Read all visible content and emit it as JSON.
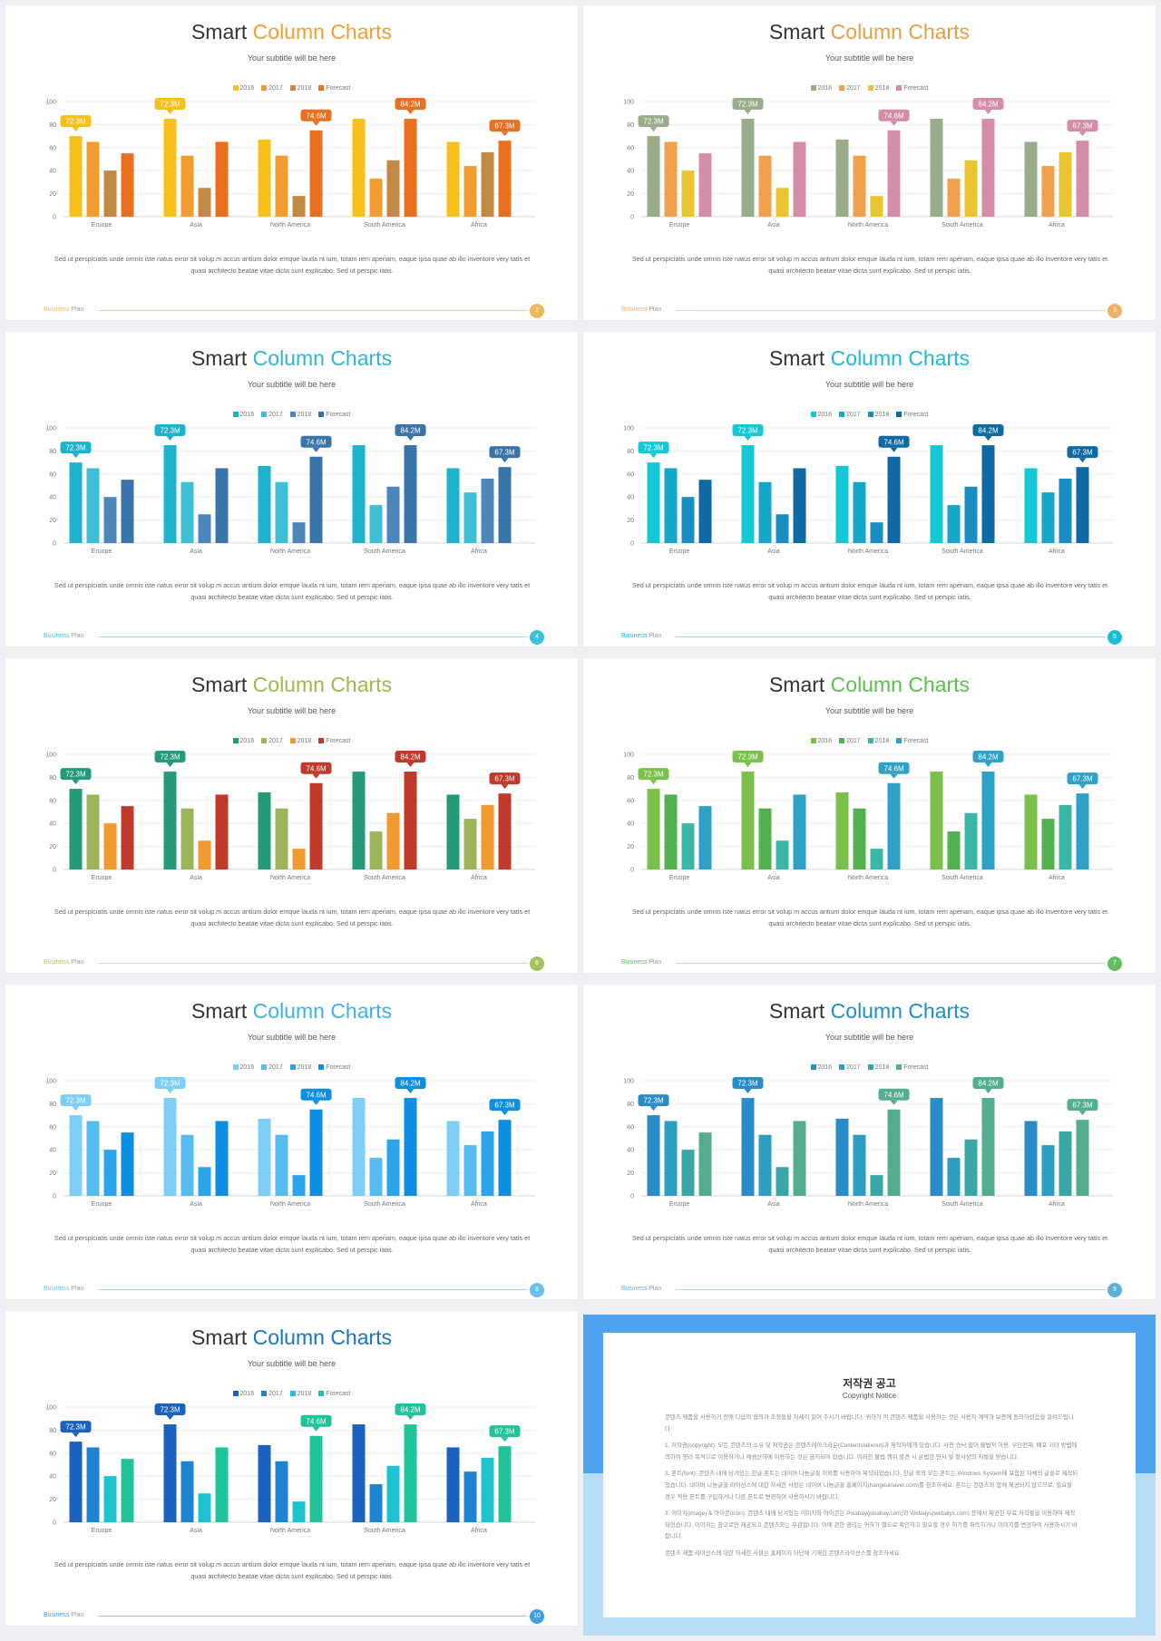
{
  "chart_data": {
    "type": "bar",
    "categories": [
      "Eruope",
      "Asia",
      "North America",
      "South America",
      "Africa"
    ],
    "series": [
      {
        "name": "2016",
        "values": [
          70,
          85,
          67,
          85,
          65
        ]
      },
      {
        "name": "2017",
        "values": [
          65,
          53,
          53,
          33,
          44
        ]
      },
      {
        "name": "2018",
        "values": [
          40,
          25,
          18,
          49,
          56
        ]
      },
      {
        "name": "Forecast",
        "values": [
          55,
          65,
          75,
          85,
          66
        ]
      }
    ],
    "ylim": [
      0,
      100
    ],
    "yticks": [
      0,
      20,
      40,
      60,
      80,
      100
    ],
    "callouts": [
      "72.3M",
      "72.3M",
      "74.6M",
      "84.2M",
      "67.3M"
    ],
    "callout_series": [
      0,
      0,
      3,
      3,
      3
    ],
    "grid": true,
    "legend_position": "top"
  },
  "slide": {
    "title_main": "Smart",
    "title_accent": "Column Charts",
    "subtitle": "Your subtitle will be here",
    "paragraph": "Sed ut perspiciatis unde omnis iste natus error sit volup m accus antium dolor emque lauda nt ium, totam rem aperiam, eaque ipsa quae ab illo inventore very tatis et quasi architecto beatae vitae dicta sunt explicabo.  Sed ut perspic iatis.",
    "footer_word1": "Business",
    "footer_word2": "Plan"
  },
  "themes": [
    {
      "page": "2",
      "accent": "#ef9f33",
      "colors": [
        "#f6c11a",
        "#f29b2e",
        "#c48a45",
        "#e9701f"
      ],
      "callout_colors": [
        "#f6c11a",
        "#f6c11a",
        "#e9701f",
        "#e9701f",
        "#e9701f"
      ],
      "line": "#e3cfa8",
      "footer": "#f0b75e"
    },
    {
      "page": "3",
      "accent": "#e59e46",
      "colors": [
        "#9aad8a",
        "#efa14d",
        "#e9c531",
        "#d58ca8"
      ],
      "callout_colors": [
        "#9aad8a",
        "#9aad8a",
        "#d58ca8",
        "#d58ca8",
        "#d58ca8"
      ],
      "line": "#e6d3b3",
      "footer": "#f0b06a"
    },
    {
      "page": "4",
      "accent": "#2fb5cf",
      "colors": [
        "#1cb3cd",
        "#3fbfd5",
        "#4d86ba",
        "#3a74a8"
      ],
      "callout_colors": [
        "#1cb3cd",
        "#1cb3cd",
        "#3a74a8",
        "#3a74a8",
        "#3a74a8"
      ],
      "line": "#a9dbe6",
      "footer": "#3cc0dc"
    },
    {
      "page": "5",
      "accent": "#1eb9d2",
      "colors": [
        "#14c8d6",
        "#12a8c8",
        "#1a8dc2",
        "#0d6aa3"
      ],
      "callout_colors": [
        "#14c8d6",
        "#14c8d6",
        "#0d6aa3",
        "#0d6aa3",
        "#0d6aa3"
      ],
      "line": "#9fd8e6",
      "footer": "#1cbcd8"
    },
    {
      "page": "6",
      "accent": "#9aba4b",
      "colors": [
        "#239a7a",
        "#9ab55a",
        "#f29a2e",
        "#c0392b"
      ],
      "callout_colors": [
        "#239a7a",
        "#239a7a",
        "#c0392b",
        "#c0392b",
        "#c0392b"
      ],
      "line": "#d9d7b8",
      "footer": "#a8c35d"
    },
    {
      "page": "7",
      "accent": "#5bbf4b",
      "colors": [
        "#7cc04c",
        "#52b04f",
        "#3cb7a6",
        "#2ea2c6"
      ],
      "callout_colors": [
        "#7cc04c",
        "#7cc04c",
        "#2ea2c6",
        "#2ea2c6",
        "#2ea2c6"
      ],
      "line": "#bfe0c0",
      "footer": "#63bd64"
    },
    {
      "page": "8",
      "accent": "#3fb1e8",
      "colors": [
        "#7dcff6",
        "#56bdf1",
        "#2aa5ec",
        "#0c8fe2"
      ],
      "callout_colors": [
        "#7dcff6",
        "#7dcff6",
        "#0c8fe2",
        "#0c8fe2",
        "#0c8fe2"
      ],
      "line": "#a7d8f2",
      "footer": "#66c3ef"
    },
    {
      "page": "9",
      "accent": "#1d8fc6",
      "colors": [
        "#2a8cc6",
        "#2b9ec2",
        "#3aa6a6",
        "#52ae8e"
      ],
      "callout_colors": [
        "#2a8cc6",
        "#2a8cc6",
        "#52ae8e",
        "#52ae8e",
        "#52ae8e"
      ],
      "line": "#b1d6e3",
      "footer": "#5fb1d2"
    },
    {
      "page": "10",
      "accent": "#1b73c4",
      "colors": [
        "#1a62c0",
        "#1e84d0",
        "#1cc4d2",
        "#20c39a"
      ],
      "callout_colors": [
        "#1a62c0",
        "#1a62c0",
        "#20c39a",
        "#20c39a",
        "#20c39a"
      ],
      "line": "#9fcbea",
      "footer": "#3f9ee0"
    }
  ],
  "notice": {
    "title": "저작권 공고",
    "subtitle": "Copyright Notice",
    "paragraphs": [
      "콘텐츠 제품을 사용하기 전에 다음의 협의과 조정들을 자세히 읽어 주시기 바랍니다. 귀하가 이 콘텐츠 제품을 사용하는 것은 사용자 계약과 보증에 동의하셨음을 알려드립니다.",
      "1. 저작권(copyright): 모든 콘텐츠의 소유 및 저작권은 콘텐츠레이크라운(Contentslakeout)과 재작자에게 있습니다. 사전 승낙 없이 불법적 이용, 무단전재, 배포 기타 방법에 의하여 영리 목적으로 이용하거나 재생산하에 이용하는 것은 금지되어 있습니다. 이러한 불법 행위 발견 시 온법한 민사 및 형사상의 처벌을 받습니다.",
      "2. 폰트(font): 콘텐츠 내에 담겨있는 한글 폰트는 네이버 나눔글꼴 이외를 사용하여 제작되었습니다. 한글 외의 모든 폰트는 Windows System에 포함된 자체의 글꼴로 제작되었습니다. 네이버 나눔글꼴 라이선스에 대한 자세한 사항은 네이버 나눔글꼴 홈페이지(hangeulnaver.com)를 참조하세요. 폰트는 콘텐츠와 함께 제공되지 않으므로, 필요할 경우 적용 폰트를 구입하거나 다른 폰트로 변경하여 사용하시기 바랍니다.",
      "3. 이미지(image) & 아이콘(icon): 콘텐츠 내에 담겨있는 이미지와 아이콘은 Pixabay(pixabay.com)와 Webalys(webalys.com) 등에서 제공한 무료 저작물을 이용하여 제작되었습니다. 이미지는 참고로만 제공되고 콘텐츠와는 무관합니다. 이에 관한 권리는 귀하가 별도로 확인하고 필요할 경우 허가를 취득하거나 이미지를 변경하여 사용하시기 바랍니다.",
      "콘텐츠 제품 라이선스에 대한 자세한 사항은 홈페이지 하단에 기재한 콘텐츠라이선스를 참조하세요."
    ]
  }
}
